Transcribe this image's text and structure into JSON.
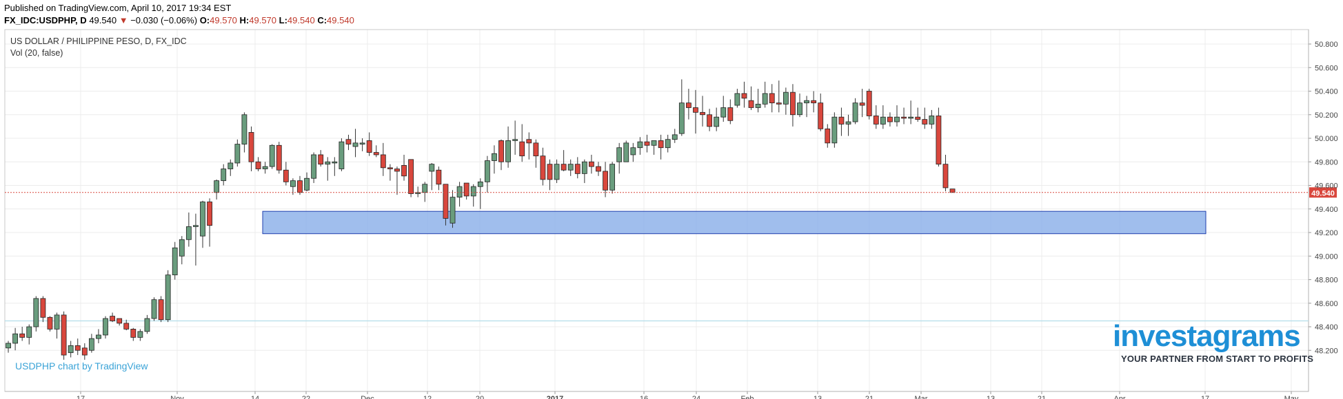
{
  "header": {
    "published": "Published on TradingView.com, April 10, 2017 19:34 EST",
    "symbol": "FX_IDC:USDPHP, D",
    "last": "49.540",
    "change_arrow": "▼",
    "change": "−0.030 (−0.06%)",
    "o_label": "O:",
    "o_value": "49.570",
    "h_label": "H:",
    "h_value": "49.570",
    "l_label": "L:",
    "l_value": "49.540",
    "c_label": "C:",
    "c_value": "49.540"
  },
  "chart_title": "US DOLLAR / PHILIPPINE PESO, D, FX_IDC",
  "volume_label": "Vol (20, false)",
  "credit": "USDPHP chart by TradingView",
  "watermark": {
    "logo": "investagrams",
    "tagline": "YOUR PARTNER FROM START TO PROFITS"
  },
  "colors": {
    "up": "#6a9d7e",
    "down": "#d9473d",
    "zone": "#8fb3ea",
    "zone_border": "#1f3fae",
    "price_tag": "#d9473d",
    "logo": "#1e8fd6"
  },
  "chart_data": {
    "type": "candlestick",
    "symbol": "USDPHP",
    "timeframe": "D",
    "last_price": 49.54,
    "last_price_label": "49.540",
    "y_ticks": [
      "50.800",
      "50.600",
      "50.400",
      "50.200",
      "50.000",
      "49.800",
      "49.600",
      "49.400",
      "49.200",
      "49.000",
      "48.800",
      "48.600",
      "48.400",
      "48.200"
    ],
    "y_tick_values": [
      50.8,
      50.6,
      50.4,
      50.2,
      50.0,
      49.8,
      49.6,
      49.4,
      49.2,
      49.0,
      48.8,
      48.6,
      48.4,
      48.2
    ],
    "ylim": [
      48.07,
      51.02
    ],
    "x_tick_labels": [
      "17",
      "Nov",
      "14",
      "22",
      "Dec",
      "12",
      "20",
      "2017",
      "16",
      "24",
      "Feb",
      "13",
      "21",
      "Mar",
      "13",
      "21",
      "Apr",
      "17",
      "May"
    ],
    "x_tick_bold": [
      false,
      false,
      false,
      false,
      false,
      false,
      false,
      true,
      false,
      false,
      false,
      false,
      false,
      false,
      false,
      false,
      false,
      false,
      false
    ],
    "support_zone": {
      "low": 49.19,
      "high": 49.38
    },
    "reference_line": 48.45,
    "grid": true,
    "candles": [
      [
        48.22,
        48.28,
        48.18,
        48.26
      ],
      [
        48.26,
        48.39,
        48.2,
        48.34
      ],
      [
        48.34,
        48.4,
        48.28,
        48.31
      ],
      [
        48.31,
        48.42,
        48.25,
        48.4
      ],
      [
        48.4,
        48.66,
        48.36,
        48.64
      ],
      [
        48.64,
        48.66,
        48.44,
        48.48
      ],
      [
        48.48,
        48.49,
        48.36,
        48.38
      ],
      [
        48.38,
        48.52,
        48.3,
        48.5
      ],
      [
        48.5,
        48.53,
        48.12,
        48.16
      ],
      [
        48.18,
        48.28,
        48.14,
        48.24
      ],
      [
        48.24,
        48.3,
        48.16,
        48.2
      ],
      [
        48.22,
        48.26,
        48.12,
        48.16
      ],
      [
        48.2,
        48.34,
        48.18,
        48.3
      ],
      [
        48.3,
        48.38,
        48.26,
        48.33
      ],
      [
        48.33,
        48.49,
        48.3,
        48.47
      ],
      [
        48.49,
        48.52,
        48.44,
        48.45
      ],
      [
        48.47,
        48.47,
        48.41,
        48.43
      ],
      [
        48.43,
        48.46,
        48.37,
        48.38
      ],
      [
        48.38,
        48.39,
        48.28,
        48.31
      ],
      [
        48.31,
        48.38,
        48.28,
        48.36
      ],
      [
        48.36,
        48.5,
        48.34,
        48.47
      ],
      [
        48.47,
        48.65,
        48.45,
        48.63
      ],
      [
        48.63,
        48.66,
        48.44,
        48.46
      ],
      [
        48.46,
        48.88,
        48.44,
        48.84
      ],
      [
        48.84,
        49.12,
        48.8,
        49.07
      ],
      [
        49.0,
        49.17,
        48.93,
        49.14
      ],
      [
        49.14,
        49.37,
        49.08,
        49.25
      ],
      [
        49.25,
        49.36,
        48.92,
        49.26
      ],
      [
        49.17,
        49.47,
        49.07,
        49.46
      ],
      [
        49.46,
        49.49,
        49.08,
        49.26
      ],
      [
        49.54,
        49.65,
        49.48,
        49.64
      ],
      [
        49.64,
        49.78,
        49.6,
        49.74
      ],
      [
        49.74,
        49.82,
        49.68,
        49.79
      ],
      [
        49.79,
        49.99,
        49.76,
        49.95
      ],
      [
        49.95,
        50.22,
        49.88,
        50.2
      ],
      [
        50.05,
        50.1,
        49.72,
        49.8
      ],
      [
        49.8,
        49.84,
        49.72,
        49.74
      ],
      [
        49.74,
        49.8,
        49.7,
        49.76
      ],
      [
        49.76,
        49.95,
        49.74,
        49.94
      ],
      [
        49.94,
        49.97,
        49.7,
        49.73
      ],
      [
        49.73,
        49.8,
        49.6,
        49.63
      ],
      [
        49.59,
        49.66,
        49.52,
        49.64
      ],
      [
        49.64,
        49.68,
        49.52,
        49.54
      ],
      [
        49.56,
        49.71,
        49.55,
        49.66
      ],
      [
        49.66,
        49.88,
        49.62,
        49.86
      ],
      [
        49.86,
        49.9,
        49.76,
        49.78
      ],
      [
        49.78,
        49.84,
        49.64,
        49.8
      ],
      [
        49.79,
        49.84,
        49.68,
        49.8
      ],
      [
        49.74,
        50.0,
        49.72,
        49.97
      ],
      [
        49.99,
        50.03,
        49.9,
        49.95
      ],
      [
        49.93,
        50.08,
        49.84,
        49.96
      ],
      [
        49.95,
        50.0,
        49.89,
        49.96
      ],
      [
        49.98,
        50.05,
        49.85,
        49.88
      ],
      [
        49.88,
        49.94,
        49.84,
        49.86
      ],
      [
        49.86,
        49.96,
        49.68,
        49.75
      ],
      [
        49.75,
        49.78,
        49.64,
        49.74
      ],
      [
        49.74,
        49.76,
        49.52,
        49.72
      ],
      [
        49.77,
        49.86,
        49.64,
        49.68
      ],
      [
        49.82,
        49.82,
        49.5,
        49.53
      ],
      [
        49.53,
        49.59,
        49.5,
        49.54
      ],
      [
        49.54,
        49.63,
        49.46,
        49.61
      ],
      [
        49.72,
        49.79,
        49.56,
        49.78
      ],
      [
        49.73,
        49.76,
        49.56,
        49.61
      ],
      [
        49.61,
        49.61,
        49.26,
        49.32
      ],
      [
        49.28,
        49.56,
        49.24,
        49.5
      ],
      [
        49.5,
        49.63,
        49.42,
        49.59
      ],
      [
        49.62,
        49.62,
        49.48,
        49.51
      ],
      [
        49.51,
        49.61,
        49.42,
        49.59
      ],
      [
        49.59,
        49.66,
        49.4,
        49.63
      ],
      [
        49.63,
        49.85,
        49.54,
        49.81
      ],
      [
        49.81,
        49.94,
        49.7,
        49.87
      ],
      [
        49.98,
        49.99,
        49.73,
        49.8
      ],
      [
        49.8,
        50.1,
        49.75,
        49.98
      ],
      [
        49.98,
        50.15,
        49.86,
        49.99
      ],
      [
        49.97,
        50.12,
        49.8,
        49.85
      ],
      [
        49.99,
        50.05,
        49.82,
        49.96
      ],
      [
        49.96,
        49.99,
        49.75,
        49.85
      ],
      [
        49.85,
        49.92,
        49.6,
        49.65
      ],
      [
        49.78,
        49.82,
        49.56,
        49.65
      ],
      [
        49.65,
        49.82,
        49.62,
        49.78
      ],
      [
        49.78,
        49.9,
        49.72,
        49.73
      ],
      [
        49.73,
        49.82,
        49.68,
        49.78
      ],
      [
        49.78,
        49.84,
        49.66,
        49.7
      ],
      [
        49.7,
        49.82,
        49.62,
        49.8
      ],
      [
        49.8,
        49.86,
        49.7,
        49.76
      ],
      [
        49.76,
        49.8,
        49.68,
        49.72
      ],
      [
        49.72,
        49.8,
        49.5,
        49.56
      ],
      [
        49.56,
        49.8,
        49.53,
        49.78
      ],
      [
        49.8,
        49.96,
        49.7,
        49.92
      ],
      [
        49.8,
        49.98,
        49.82,
        49.96
      ],
      [
        49.86,
        49.96,
        49.8,
        49.92
      ],
      [
        49.92,
        50.01,
        49.86,
        49.97
      ],
      [
        49.97,
        50.03,
        49.88,
        49.94
      ],
      [
        49.94,
        49.98,
        49.86,
        49.98
      ],
      [
        49.98,
        50.03,
        49.82,
        49.92
      ],
      [
        49.92,
        50.03,
        49.88,
        49.99
      ],
      [
        49.99,
        50.08,
        49.96,
        50.03
      ],
      [
        50.04,
        50.5,
        50.02,
        50.3
      ],
      [
        50.3,
        50.42,
        50.16,
        50.26
      ],
      [
        50.26,
        50.41,
        50.04,
        50.22
      ],
      [
        50.22,
        50.36,
        50.1,
        50.2
      ],
      [
        50.2,
        50.25,
        50.06,
        50.1
      ],
      [
        50.1,
        50.26,
        50.06,
        50.18
      ],
      [
        50.18,
        50.36,
        50.14,
        50.26
      ],
      [
        50.26,
        50.33,
        50.12,
        50.15
      ],
      [
        50.28,
        50.42,
        50.26,
        50.38
      ],
      [
        50.38,
        50.48,
        50.26,
        50.34
      ],
      [
        50.32,
        50.44,
        50.24,
        50.26
      ],
      [
        50.26,
        50.42,
        50.22,
        50.29
      ],
      [
        50.29,
        50.48,
        50.26,
        50.38
      ],
      [
        50.38,
        50.46,
        50.22,
        50.3
      ],
      [
        50.3,
        50.49,
        50.22,
        50.29
      ],
      [
        50.29,
        50.43,
        50.2,
        50.39
      ],
      [
        50.39,
        50.46,
        50.1,
        50.2
      ],
      [
        50.2,
        50.38,
        50.18,
        50.3
      ],
      [
        50.3,
        50.36,
        50.18,
        50.32
      ],
      [
        50.32,
        50.4,
        50.22,
        50.3
      ],
      [
        50.3,
        50.38,
        50.06,
        50.08
      ],
      [
        50.08,
        50.12,
        49.92,
        49.96
      ],
      [
        49.96,
        50.22,
        49.92,
        50.18
      ],
      [
        50.18,
        50.26,
        50.02,
        50.12
      ],
      [
        50.12,
        50.2,
        50.02,
        50.14
      ],
      [
        50.14,
        50.34,
        50.12,
        50.3
      ],
      [
        50.3,
        50.42,
        50.18,
        50.28
      ],
      [
        50.4,
        50.42,
        50.16,
        50.19
      ],
      [
        50.19,
        50.28,
        50.08,
        50.12
      ],
      [
        50.12,
        50.28,
        50.08,
        50.18
      ],
      [
        50.18,
        50.22,
        50.1,
        50.14
      ],
      [
        50.14,
        50.28,
        50.1,
        50.18
      ],
      [
        50.18,
        50.26,
        50.12,
        50.17
      ],
      [
        50.17,
        50.32,
        50.12,
        50.18
      ],
      [
        50.18,
        50.26,
        50.14,
        50.16
      ],
      [
        50.16,
        50.26,
        50.08,
        50.12
      ],
      [
        50.12,
        50.24,
        50.08,
        50.19
      ],
      [
        50.19,
        50.26,
        49.76,
        49.78
      ],
      [
        49.78,
        49.86,
        49.55,
        49.58
      ],
      [
        49.57,
        49.57,
        49.54,
        49.54
      ]
    ]
  }
}
